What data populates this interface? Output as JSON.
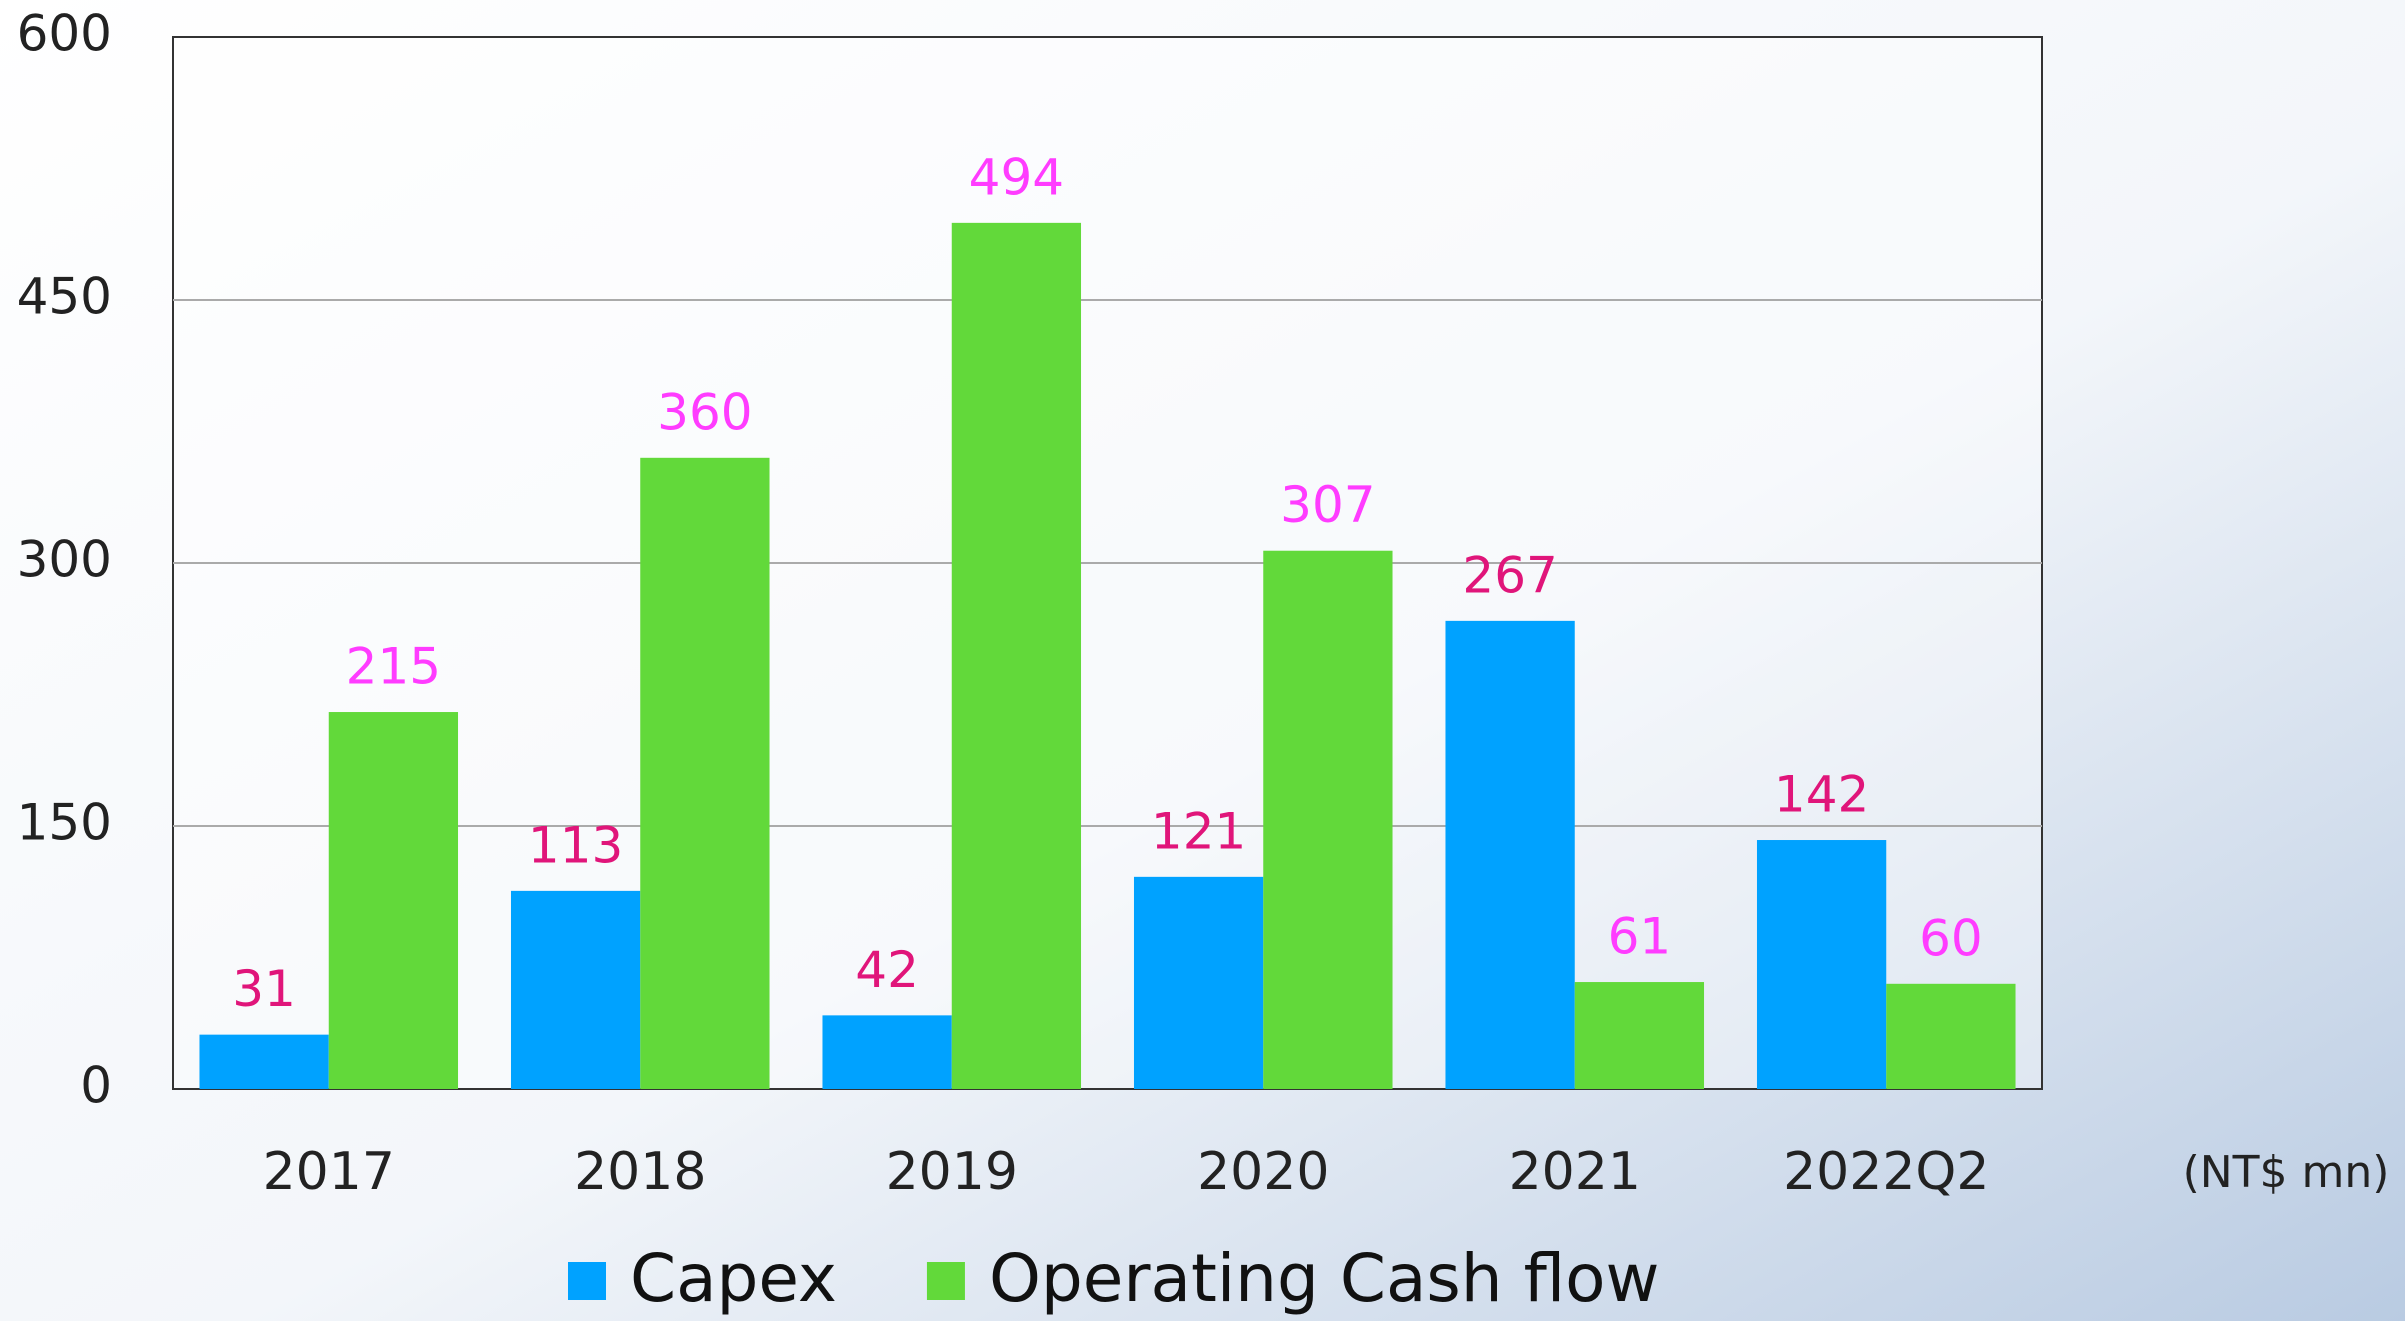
{
  "chart_data": {
    "type": "bar",
    "categories": [
      "2017",
      "2018",
      "2019",
      "2020",
      "2021",
      "2022Q2"
    ],
    "series": [
      {
        "name": "Capex",
        "color": "#00a2ff",
        "label_color": "#e0157a",
        "values": [
          31,
          113,
          42,
          121,
          267,
          142
        ]
      },
      {
        "name": "Operating Cash flow",
        "color": "#62d93a",
        "label_color": "#ff3cff",
        "values": [
          215,
          360,
          494,
          307,
          61,
          60
        ]
      }
    ],
    "unit_label": "(NT$ mn)",
    "ylim": [
      0,
      600
    ],
    "yticks": [
      0,
      150,
      300,
      450,
      600
    ],
    "grid": true,
    "legend": "bottom"
  }
}
